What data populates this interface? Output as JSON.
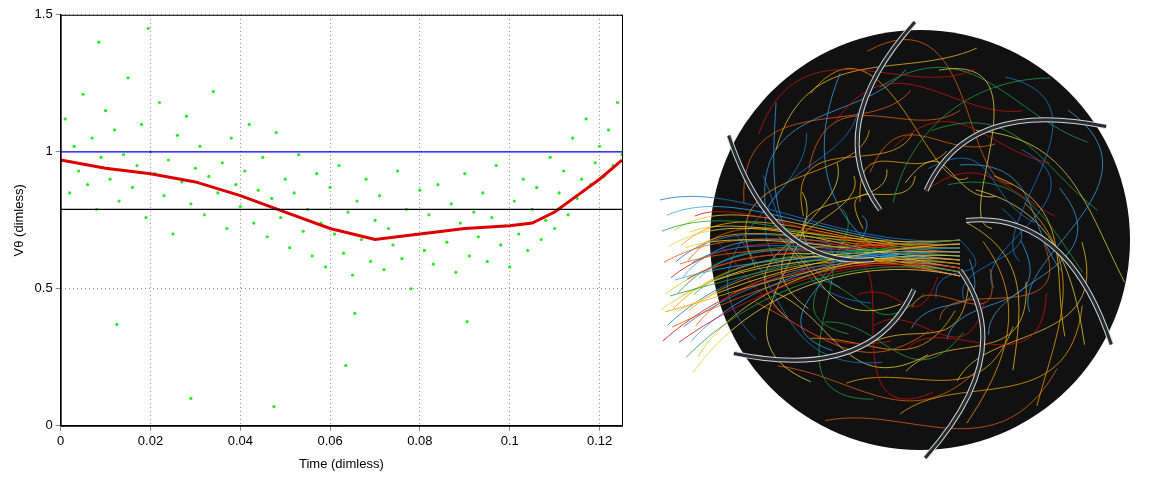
{
  "chart_data": {
    "type": "scatter",
    "x_label": "Time (dimless)",
    "y_label": "Vθ (dimless)",
    "xlim": [
      0,
      0.125
    ],
    "xticks": [
      0,
      0.02,
      0.04,
      0.06,
      0.08,
      0.1,
      0.12
    ],
    "ylim": [
      0,
      1.5
    ],
    "yticks": [
      0,
      0.5,
      1,
      1.5
    ],
    "grid": true,
    "series": [
      {
        "type": "scatter",
        "color": "#22ee22",
        "marker": "point",
        "x": [
          0.001,
          0.002,
          0.003,
          0.004,
          0.005,
          0.006,
          0.007,
          0.008,
          0.009,
          0.01,
          0.011,
          0.012,
          0.013,
          0.014,
          0.015,
          0.016,
          0.017,
          0.018,
          0.019,
          0.02,
          0.021,
          0.022,
          0.023,
          0.024,
          0.025,
          0.026,
          0.027,
          0.028,
          0.029,
          0.03,
          0.031,
          0.032,
          0.033,
          0.034,
          0.035,
          0.036,
          0.037,
          0.038,
          0.039,
          0.04,
          0.041,
          0.042,
          0.043,
          0.044,
          0.045,
          0.046,
          0.047,
          0.048,
          0.049,
          0.05,
          0.051,
          0.052,
          0.053,
          0.054,
          0.055,
          0.056,
          0.057,
          0.058,
          0.059,
          0.06,
          0.061,
          0.062,
          0.063,
          0.064,
          0.065,
          0.066,
          0.067,
          0.068,
          0.069,
          0.07,
          0.071,
          0.072,
          0.073,
          0.074,
          0.075,
          0.076,
          0.077,
          0.078,
          0.079,
          0.08,
          0.081,
          0.082,
          0.083,
          0.084,
          0.085,
          0.086,
          0.087,
          0.088,
          0.089,
          0.09,
          0.091,
          0.092,
          0.093,
          0.094,
          0.095,
          0.096,
          0.097,
          0.098,
          0.099,
          0.1,
          0.101,
          0.102,
          0.103,
          0.104,
          0.105,
          0.106,
          0.107,
          0.108,
          0.109,
          0.11,
          0.111,
          0.112,
          0.113,
          0.114,
          0.115,
          0.116,
          0.117,
          0.118,
          0.119,
          0.12,
          0.121,
          0.122,
          0.123,
          0.124,
          0.125,
          0.0125,
          0.029,
          0.0475,
          0.0635,
          0.0195,
          0.0655,
          0.0085,
          0.0905
        ],
        "values": [
          1.12,
          0.85,
          1.02,
          0.93,
          1.21,
          0.88,
          1.05,
          0.79,
          0.98,
          1.15,
          0.9,
          1.08,
          0.82,
          0.99,
          1.27,
          0.87,
          0.95,
          1.1,
          0.76,
          1.0,
          0.92,
          1.18,
          0.84,
          0.97,
          0.7,
          1.06,
          0.89,
          1.13,
          0.81,
          0.94,
          1.02,
          0.77,
          0.91,
          1.22,
          0.85,
          0.96,
          0.72,
          1.05,
          0.88,
          0.8,
          0.93,
          1.1,
          0.74,
          0.86,
          0.98,
          0.69,
          0.83,
          1.07,
          0.76,
          0.9,
          0.65,
          0.85,
          0.99,
          0.71,
          0.79,
          0.62,
          0.92,
          0.74,
          0.58,
          0.87,
          0.7,
          0.95,
          0.63,
          0.78,
          0.55,
          0.82,
          0.68,
          0.9,
          0.6,
          0.75,
          0.84,
          0.57,
          0.72,
          0.66,
          0.93,
          0.61,
          0.79,
          0.5,
          0.7,
          0.86,
          0.64,
          0.77,
          0.59,
          0.88,
          0.71,
          0.67,
          0.81,
          0.56,
          0.74,
          0.92,
          0.62,
          0.78,
          0.69,
          0.85,
          0.6,
          0.76,
          0.95,
          0.66,
          0.73,
          0.58,
          0.82,
          0.7,
          0.9,
          0.64,
          0.79,
          0.87,
          0.68,
          0.75,
          0.98,
          0.72,
          0.85,
          0.93,
          0.77,
          1.05,
          0.83,
          0.9,
          1.12,
          0.88,
          0.96,
          1.02,
          0.91,
          1.08,
          0.95,
          1.18,
          0.99,
          0.37,
          0.1,
          0.07,
          0.22,
          1.45,
          0.41,
          1.4,
          0.38
        ]
      },
      {
        "type": "line",
        "color": "#0000ff",
        "line_style": "solid",
        "x": [
          0,
          0.125
        ],
        "values": [
          1,
          1
        ]
      },
      {
        "type": "line",
        "color": "#000000",
        "line_style": "solid",
        "x": [
          0,
          0.125
        ],
        "values": [
          0.79,
          0.79
        ]
      },
      {
        "type": "line",
        "color": "#dd0000",
        "line_style": "solid",
        "x": [
          0,
          0.01,
          0.02,
          0.03,
          0.04,
          0.05,
          0.06,
          0.07,
          0.08,
          0.09,
          0.1,
          0.105,
          0.11,
          0.115,
          0.12,
          0.125
        ],
        "values": [
          0.97,
          0.94,
          0.92,
          0.89,
          0.84,
          0.78,
          0.72,
          0.68,
          0.7,
          0.72,
          0.73,
          0.74,
          0.78,
          0.84,
          0.9,
          0.97
        ]
      }
    ]
  }
}
